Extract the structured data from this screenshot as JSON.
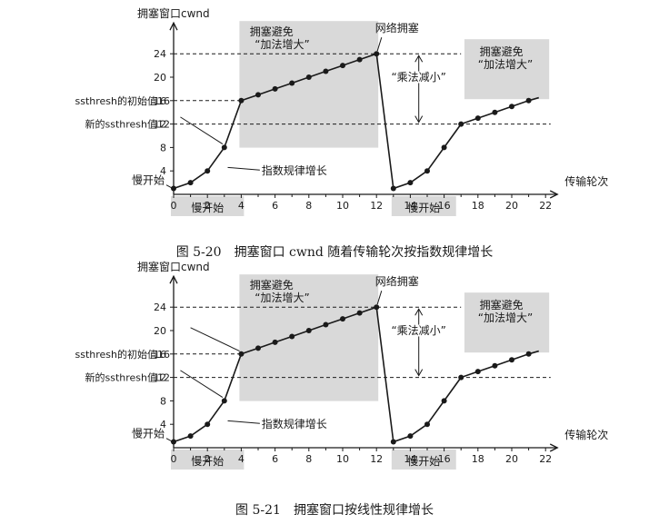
{
  "chart_data": [
    {
      "type": "line",
      "title": "图 5-20　拥塞窗口 cwnd 随着传输轮次按指数规律增长",
      "xlabel": "传输轮次",
      "ylabel": "拥塞窗口cwnd",
      "xlim": [
        0,
        22
      ],
      "ylim": [
        0,
        24
      ],
      "x_ticks": [
        "0",
        "2",
        "4",
        "6",
        "8",
        "10",
        "12",
        "14",
        "16",
        "18",
        "20",
        "22"
      ],
      "y_ticks": [
        "4",
        "8",
        "12",
        "16",
        "20",
        "24"
      ],
      "series": [
        {
          "x": [
            0,
            1,
            2,
            3,
            4,
            5,
            6,
            7,
            8,
            9,
            10,
            11,
            12,
            13,
            14,
            15,
            16,
            17,
            18,
            19,
            20,
            21
          ],
          "values": [
            1,
            2,
            4,
            8,
            16,
            17,
            18,
            19,
            20,
            21,
            22,
            23,
            24,
            1,
            2,
            4,
            8,
            12,
            13,
            14,
            15,
            16
          ]
        }
      ],
      "annotations": {
        "ssthresh_initial": "ssthresh的初始值16",
        "ssthresh_new": "新的ssthresh值12",
        "slow_start_label": "慢开始",
        "slow_start_bottom_1": "慢开始",
        "slow_start_bottom_2": "慢开始",
        "exp_growth": "指数规律增长",
        "congestion": "网络拥塞",
        "mult_decrease": "“乘法减小”",
        "ca_box_1_line1": "拥塞避免",
        "ca_box_1_line2": "“加法增大”",
        "ca_box_2_line1": "拥塞避免",
        "ca_box_2_line2": "“加法增大”"
      }
    },
    {
      "type": "line",
      "title": "图 5-21　拥塞窗口按线性规律增长",
      "xlabel": "传输轮次",
      "ylabel": "拥塞窗口cwnd",
      "xlim": [
        0,
        22
      ],
      "ylim": [
        0,
        24
      ],
      "x_ticks": [
        "0",
        "2",
        "4",
        "6",
        "8",
        "10",
        "12",
        "14",
        "16",
        "18",
        "20",
        "22"
      ],
      "y_ticks": [
        "4",
        "8",
        "12",
        "16",
        "20",
        "24"
      ],
      "series": [
        {
          "x": [
            0,
            1,
            2,
            3,
            4,
            5,
            6,
            7,
            8,
            9,
            10,
            11,
            12,
            13,
            14,
            15,
            16,
            17,
            18,
            19,
            20,
            21
          ],
          "values": [
            1,
            2,
            4,
            8,
            16,
            17,
            18,
            19,
            20,
            21,
            22,
            23,
            24,
            1,
            2,
            4,
            8,
            12,
            13,
            14,
            15,
            16
          ]
        }
      ],
      "annotations": {
        "ssthresh_initial": "ssthresh的初始值16",
        "ssthresh_new": "新的ssthresh值12",
        "slow_start_label": "慢开始",
        "slow_start_bottom_1": "慢开始",
        "slow_start_bottom_2": "慢开始",
        "exp_growth": "指数规律增长",
        "congestion": "网络拥塞",
        "mult_decrease": "“乘法减小”",
        "ca_box_1_line1": "拥塞避免",
        "ca_box_1_line2": "“加法增大”",
        "ca_box_2_line1": "拥塞避免",
        "ca_box_2_line2": "“加法增大”"
      }
    }
  ],
  "colors": {
    "ink": "#1a1a1a",
    "box": "#d9d9d9"
  }
}
